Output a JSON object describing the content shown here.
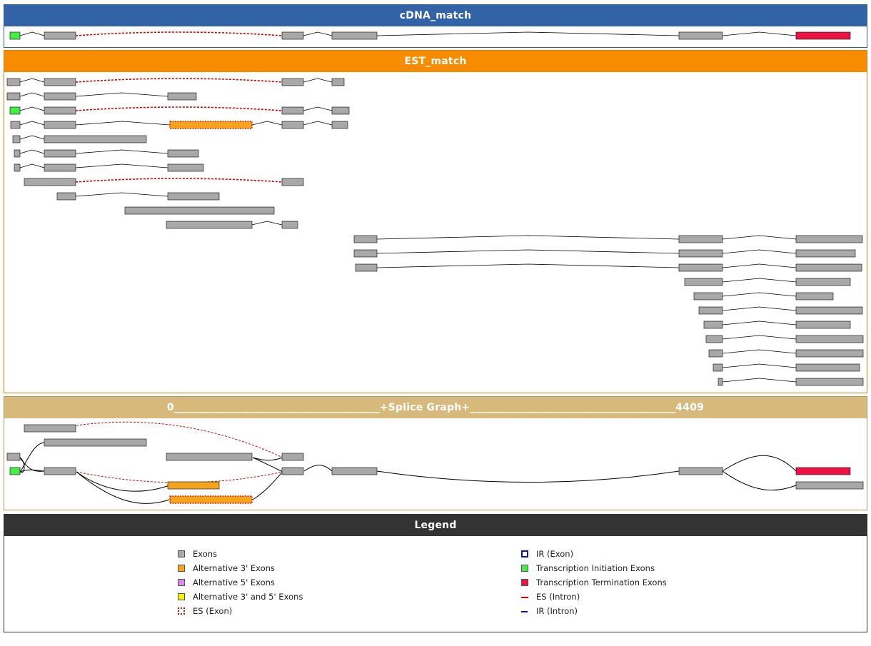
{
  "colors": {
    "exon": "#a8a8a8",
    "alt3": "#f7a41d",
    "alt5": "#dd88ee",
    "alt35": "#f8f200",
    "init": "#44ee44",
    "term": "#ee1144",
    "es": "#dd0000",
    "ir": "#1111aa"
  },
  "panels": {
    "cdna_title": "cDNA_match",
    "est_title": "EST_match",
    "splice_title": "0________________________________________+Splice Graph+________________________________________4409",
    "legend_title": "Legend"
  },
  "legend": {
    "items": [
      {
        "label": "Exons",
        "symbol": "exon"
      },
      {
        "label": "Alternative 3' Exons",
        "symbol": "alt3"
      },
      {
        "label": "Alternative 5' Exons",
        "symbol": "alt5"
      },
      {
        "label": "Alternative 3' and 5' Exons",
        "symbol": "alt35"
      },
      {
        "label": "ES (Exon)",
        "symbol": "es-exon"
      },
      {
        "label": "IR (Exon)",
        "symbol": "ir-exon"
      },
      {
        "label": "Transcription Initiation Exons",
        "symbol": "init"
      },
      {
        "label": "Transcription Termination Exons",
        "symbol": "term"
      },
      {
        "label": "ES (Intron)",
        "symbol": "es-intron"
      },
      {
        "label": "IR (Intron)",
        "symbol": "ir-intron"
      }
    ]
  },
  "tracks": {
    "cdna": [
      {
        "exons": [
          [
            14,
            28,
            "init"
          ],
          [
            62,
            106,
            "exon"
          ],
          [
            395,
            425,
            "exon"
          ],
          [
            465,
            528,
            "exon"
          ],
          [
            951,
            1012,
            "exon"
          ],
          [
            1115,
            1191,
            "term"
          ]
        ],
        "introns": [
          "n",
          "es",
          "n",
          "n",
          "n"
        ]
      }
    ],
    "est": [
      {
        "exons": [
          [
            10,
            28,
            "exon"
          ],
          [
            62,
            106,
            "exon"
          ],
          [
            395,
            425,
            "exon"
          ],
          [
            465,
            482,
            "exon"
          ]
        ],
        "introns": [
          "n",
          "es",
          "n"
        ]
      },
      {
        "exons": [
          [
            10,
            28,
            "exon"
          ],
          [
            62,
            106,
            "exon"
          ],
          [
            235,
            275,
            "exon"
          ]
        ],
        "introns": [
          "n",
          "n"
        ]
      },
      {
        "exons": [
          [
            14,
            28,
            "init"
          ],
          [
            62,
            106,
            "exon"
          ],
          [
            395,
            425,
            "exon"
          ],
          [
            465,
            489,
            "exon"
          ]
        ],
        "introns": [
          "n",
          "es",
          "n"
        ]
      },
      {
        "exons": [
          [
            15,
            28,
            "exon"
          ],
          [
            62,
            106,
            "exon"
          ],
          [
            238,
            353,
            "alt3-es"
          ],
          [
            395,
            425,
            "exon"
          ],
          [
            465,
            487,
            "exon"
          ]
        ],
        "introns": [
          "n",
          "n",
          "n",
          "n"
        ]
      },
      {
        "exons": [
          [
            18,
            28,
            "exon"
          ],
          [
            62,
            205,
            "exon"
          ]
        ],
        "introns": [
          "n"
        ]
      },
      {
        "exons": [
          [
            20,
            28,
            "exon"
          ],
          [
            62,
            106,
            "exon"
          ],
          [
            235,
            278,
            "exon"
          ]
        ],
        "introns": [
          "n",
          "n"
        ]
      },
      {
        "exons": [
          [
            20,
            28,
            "exon"
          ],
          [
            62,
            106,
            "exon"
          ],
          [
            235,
            285,
            "exon"
          ]
        ],
        "introns": [
          "n",
          "n"
        ]
      },
      {
        "exons": [
          [
            34,
            106,
            "exon"
          ],
          [
            395,
            425,
            "exon"
          ]
        ],
        "introns": [
          "es"
        ]
      },
      {
        "exons": [
          [
            80,
            106,
            "exon"
          ],
          [
            235,
            307,
            "exon"
          ]
        ],
        "introns": [
          "n"
        ]
      },
      {
        "exons": [
          [
            175,
            384,
            "exon"
          ]
        ],
        "introns": []
      },
      {
        "exons": [
          [
            233,
            353,
            "exon"
          ],
          [
            395,
            417,
            "exon"
          ]
        ],
        "introns": [
          "n"
        ]
      },
      {
        "exons": [
          [
            496,
            528,
            "exon"
          ],
          [
            951,
            1012,
            "exon"
          ],
          [
            1115,
            1208,
            "exon"
          ]
        ],
        "introns": [
          "n",
          "n"
        ]
      },
      {
        "exons": [
          [
            496,
            528,
            "exon"
          ],
          [
            951,
            1012,
            "exon"
          ],
          [
            1115,
            1198,
            "exon"
          ]
        ],
        "introns": [
          "n",
          "n"
        ]
      },
      {
        "exons": [
          [
            498,
            528,
            "exon"
          ],
          [
            951,
            1012,
            "exon"
          ],
          [
            1115,
            1207,
            "exon"
          ]
        ],
        "introns": [
          "n",
          "n"
        ]
      },
      {
        "exons": [
          [
            959,
            1012,
            "exon"
          ],
          [
            1115,
            1191,
            "exon"
          ]
        ],
        "introns": [
          "n"
        ]
      },
      {
        "exons": [
          [
            972,
            1012,
            "exon"
          ],
          [
            1115,
            1167,
            "exon"
          ]
        ],
        "introns": [
          "n"
        ]
      },
      {
        "exons": [
          [
            979,
            1012,
            "exon"
          ],
          [
            1115,
            1208,
            "exon"
          ]
        ],
        "introns": [
          "n"
        ]
      },
      {
        "exons": [
          [
            986,
            1012,
            "exon"
          ],
          [
            1115,
            1191,
            "exon"
          ]
        ],
        "introns": [
          "n"
        ]
      },
      {
        "exons": [
          [
            989,
            1012,
            "exon"
          ],
          [
            1115,
            1209,
            "exon"
          ]
        ],
        "introns": [
          "n"
        ]
      },
      {
        "exons": [
          [
            993,
            1012,
            "exon"
          ],
          [
            1115,
            1209,
            "exon"
          ]
        ],
        "introns": [
          "n"
        ]
      },
      {
        "exons": [
          [
            999,
            1012,
            "exon"
          ],
          [
            1115,
            1204,
            "exon"
          ]
        ],
        "introns": [
          "n"
        ]
      },
      {
        "exons": [
          [
            1006,
            1012,
            "exon"
          ],
          [
            1115,
            1209,
            "exon"
          ]
        ],
        "introns": [
          "n"
        ]
      }
    ]
  }
}
